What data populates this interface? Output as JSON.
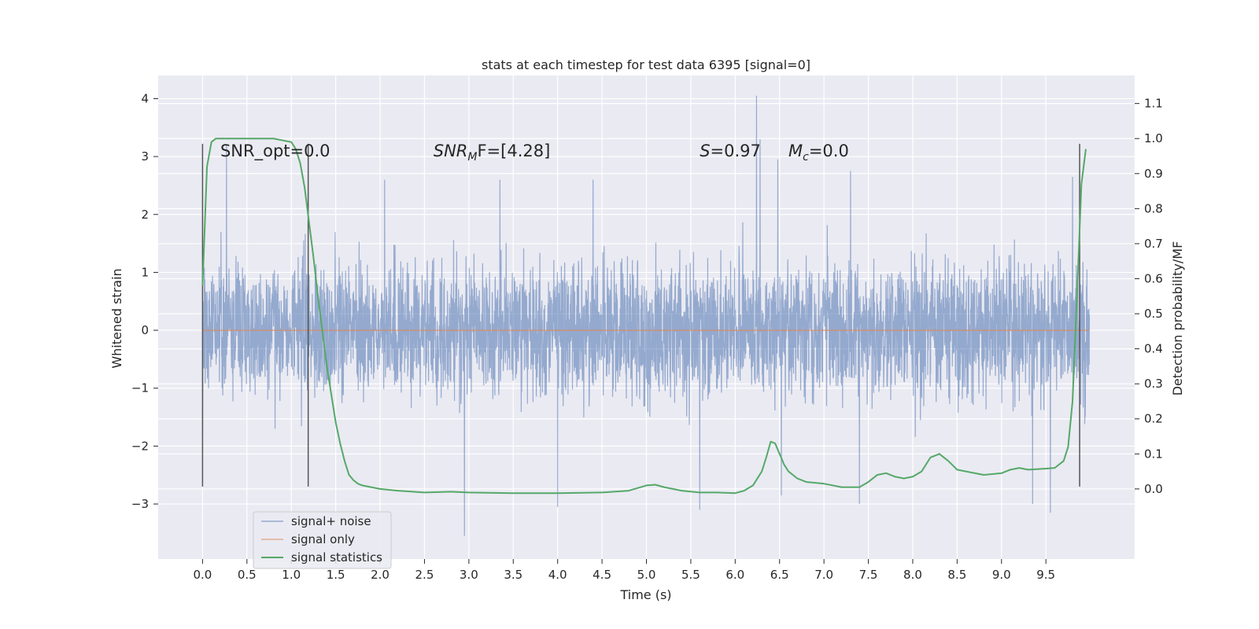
{
  "chart_data": {
    "type": "line",
    "title": "stats at each timestep for test data 6395 [signal=0]",
    "xlabel": "Time (s)",
    "ylabel": "Whitened strain",
    "ylabel_right": "Detection probability/MF",
    "xlim": [
      -0.5,
      10.5
    ],
    "ylim": [
      -3.95,
      4.4
    ],
    "ylim_right": [
      -0.2,
      1.18
    ],
    "x_ticks": [
      0.0,
      0.5,
      1.0,
      1.5,
      2.0,
      2.5,
      3.0,
      3.5,
      4.0,
      4.5,
      5.0,
      5.5,
      6.0,
      6.5,
      7.0,
      7.5,
      8.0,
      8.5,
      9.0,
      9.5
    ],
    "x_tick_labels": [
      "0.0",
      "0.5",
      "1.0",
      "1.5",
      "2.0",
      "2.5",
      "3.0",
      "3.5",
      "4.0",
      "4.5",
      "5.0",
      "5.5",
      "6.0",
      "6.5",
      "7.0",
      "7.5",
      "8.0",
      "8.5",
      "9.0",
      "9.5"
    ],
    "y_ticks": [
      -3,
      -2,
      -1,
      0,
      1,
      2,
      3,
      4
    ],
    "y_tick_labels": [
      "−3",
      "−2",
      "−1",
      "0",
      "1",
      "2",
      "3",
      "4"
    ],
    "y_ticks_right": [
      0.0,
      0.1,
      0.2,
      0.3,
      0.4,
      0.5,
      0.6,
      0.7,
      0.8,
      0.9,
      1.0,
      1.1
    ],
    "y_tick_labels_right": [
      "0.0",
      "0.1",
      "0.2",
      "0.3",
      "0.4",
      "0.5",
      "0.6",
      "0.7",
      "0.8",
      "0.9",
      "1.0",
      "1.1"
    ],
    "grid": true,
    "legend_position": "lower-left",
    "series": [
      {
        "name": "signal+ noise",
        "color": "#4c72b0",
        "opacity": 0.55,
        "axis": "left",
        "x_range": [
          0.0,
          9.99
        ],
        "envelope": {
          "typical_max": 1.45,
          "typical_min": -1.5,
          "peak_max": 4.05,
          "peak_min": -3.55
        },
        "notable_extremes": [
          {
            "x": 0.27,
            "y": 3.2
          },
          {
            "x": 2.05,
            "y": 2.6
          },
          {
            "x": 2.95,
            "y": -3.55
          },
          {
            "x": 3.35,
            "y": 2.6
          },
          {
            "x": 4.0,
            "y": -3.05
          },
          {
            "x": 4.4,
            "y": 2.6
          },
          {
            "x": 5.6,
            "y": -3.1
          },
          {
            "x": 6.24,
            "y": 4.05
          },
          {
            "x": 6.28,
            "y": 3.3
          },
          {
            "x": 6.48,
            "y": 2.95
          },
          {
            "x": 6.52,
            "y": -2.85
          },
          {
            "x": 7.3,
            "y": 2.75
          },
          {
            "x": 7.4,
            "y": -3.0
          },
          {
            "x": 9.35,
            "y": -3.0
          },
          {
            "x": 9.55,
            "y": -3.15
          },
          {
            "x": 9.8,
            "y": 2.65
          }
        ]
      },
      {
        "name": "signal only",
        "color": "#dd8452",
        "axis": "left",
        "x": [
          0.0,
          9.99
        ],
        "values": [
          0.0,
          0.0
        ]
      },
      {
        "name": "signal statistics",
        "color": "#55a868",
        "axis": "right",
        "x": [
          0.0,
          0.05,
          0.1,
          0.15,
          0.2,
          0.3,
          0.5,
          0.8,
          1.0,
          1.05,
          1.1,
          1.15,
          1.2,
          1.25,
          1.3,
          1.35,
          1.4,
          1.45,
          1.5,
          1.55,
          1.6,
          1.65,
          1.7,
          1.75,
          1.8,
          1.9,
          2.0,
          2.2,
          2.5,
          2.8,
          3.0,
          3.5,
          4.0,
          4.5,
          4.8,
          5.0,
          5.1,
          5.2,
          5.4,
          5.6,
          5.8,
          6.0,
          6.1,
          6.2,
          6.3,
          6.35,
          6.4,
          6.45,
          6.5,
          6.55,
          6.6,
          6.7,
          6.8,
          7.0,
          7.2,
          7.4,
          7.5,
          7.6,
          7.7,
          7.8,
          7.9,
          8.0,
          8.1,
          8.2,
          8.3,
          8.4,
          8.5,
          8.6,
          8.8,
          9.0,
          9.1,
          9.2,
          9.3,
          9.5,
          9.6,
          9.7,
          9.75,
          9.8,
          9.85,
          9.9,
          9.95
        ],
        "values": [
          0.58,
          0.92,
          0.99,
          1.0,
          1.0,
          1.0,
          1.0,
          1.0,
          0.99,
          0.97,
          0.93,
          0.86,
          0.76,
          0.66,
          0.55,
          0.45,
          0.35,
          0.27,
          0.19,
          0.13,
          0.08,
          0.04,
          0.025,
          0.015,
          0.01,
          0.005,
          0.0,
          -0.005,
          -0.01,
          -0.008,
          -0.01,
          -0.012,
          -0.012,
          -0.01,
          -0.005,
          0.01,
          0.012,
          0.005,
          -0.005,
          -0.01,
          -0.01,
          -0.012,
          -0.005,
          0.01,
          0.05,
          0.09,
          0.135,
          0.13,
          0.1,
          0.07,
          0.05,
          0.03,
          0.02,
          0.015,
          0.005,
          0.005,
          0.02,
          0.04,
          0.045,
          0.035,
          0.03,
          0.035,
          0.05,
          0.09,
          0.1,
          0.08,
          0.055,
          0.05,
          0.04,
          0.045,
          0.055,
          0.06,
          0.055,
          0.058,
          0.06,
          0.08,
          0.12,
          0.25,
          0.55,
          0.87,
          0.97
        ]
      }
    ],
    "vertical_markers": [
      {
        "x": 0.0,
        "y_top": 3.22,
        "y_bottom": -2.7
      },
      {
        "x": 1.19,
        "y_top": 3.22,
        "y_bottom": -2.7
      },
      {
        "x": 9.88,
        "y_top": 3.22,
        "y_bottom": -2.7
      }
    ],
    "annotations": [
      {
        "id": "snr_opt",
        "label": "SNR_opt=0.0",
        "x": 0.2,
        "y": 3.0
      },
      {
        "id": "snr_mf",
        "label_sym": "SNR",
        "label_sub": "M",
        "label_rest": "F=[4.28]",
        "x": 2.6,
        "y": 3.0
      },
      {
        "id": "s",
        "label_sym": "S",
        "label_rest": "=0.97",
        "x": 5.6,
        "y": 3.0
      },
      {
        "id": "mc",
        "label_sym": "M",
        "label_sub": "c",
        "label_rest": "=0.0",
        "x": 6.6,
        "y": 3.0
      }
    ]
  }
}
